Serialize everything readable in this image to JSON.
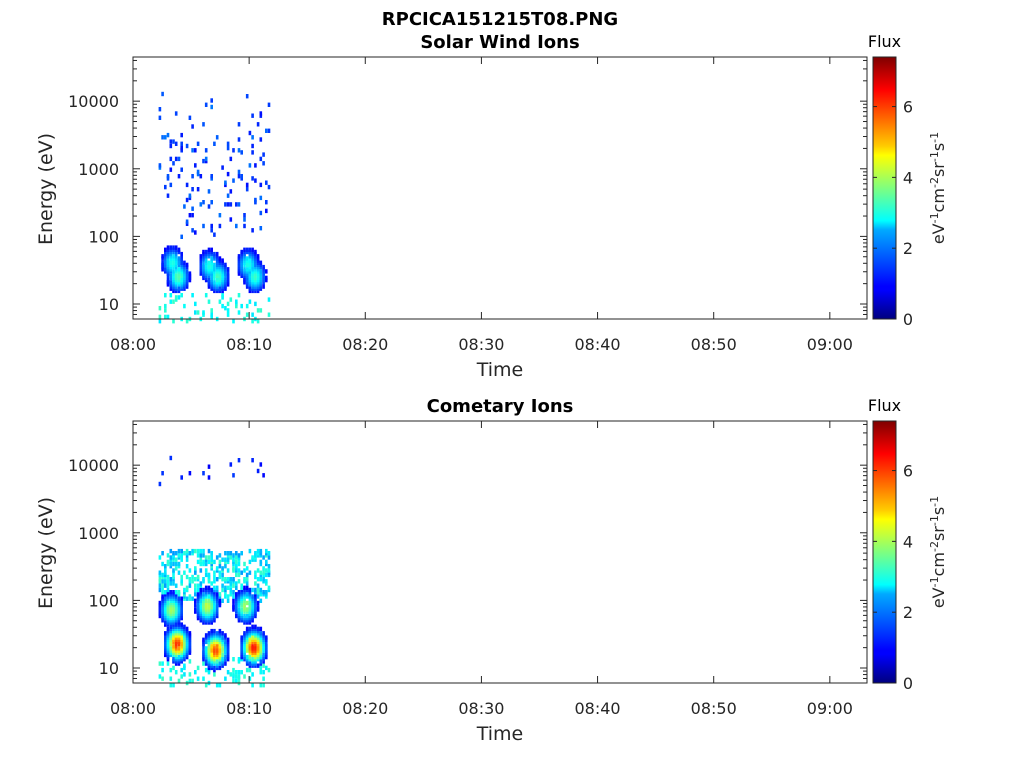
{
  "figure_title": "RPCICA151215T08.PNG",
  "chart_data": [
    {
      "type": "heatmap",
      "title": "Solar Wind Ions",
      "xlabel": "Time",
      "ylabel": "Energy (eV)",
      "x_ticks": [
        "08:00",
        "08:10",
        "08:20",
        "08:30",
        "08:40",
        "08:50",
        "09:00"
      ],
      "y_ticks": [
        "10",
        "100",
        "1000",
        "10000"
      ],
      "y_scale": "log",
      "ylim": [
        6,
        45000
      ],
      "colorbar": {
        "title": "Flux",
        "label": "eV-1cm-2sr-1s-1",
        "ticks": [
          "0",
          "2",
          "4",
          "6"
        ],
        "range": [
          0,
          7.4
        ],
        "colormap": "jet"
      },
      "data_extent": {
        "time_start": "08:02",
        "time_end": "08:11"
      },
      "blobs": [
        {
          "t": 3.8,
          "e": 28,
          "flux": 3.4
        },
        {
          "t": 7.2,
          "e": 28,
          "flux": 3.3
        },
        {
          "t": 10.4,
          "e": 28,
          "flux": 3.2
        },
        {
          "t": 3.3,
          "e": 45,
          "flux": 3.0
        },
        {
          "t": 6.5,
          "e": 40,
          "flux": 3.0
        },
        {
          "t": 9.8,
          "e": 42,
          "flux": 3.0
        }
      ]
    },
    {
      "type": "heatmap",
      "title": "Cometary Ions",
      "xlabel": "Time",
      "ylabel": "Energy (eV)",
      "x_ticks": [
        "08:00",
        "08:10",
        "08:20",
        "08:30",
        "08:40",
        "08:50",
        "09:00"
      ],
      "y_ticks": [
        "10",
        "100",
        "1000",
        "10000"
      ],
      "y_scale": "log",
      "ylim": [
        6,
        45000
      ],
      "colorbar": {
        "title": "Flux",
        "label": "eV-1cm-2sr-1s-1",
        "ticks": [
          "0",
          "2",
          "4",
          "6"
        ],
        "range": [
          0,
          7.4
        ],
        "colormap": "jet"
      },
      "data_extent": {
        "time_start": "08:02",
        "time_end": "08:11"
      },
      "blobs": [
        {
          "t": 3.7,
          "e": 25,
          "flux": 6.2
        },
        {
          "t": 7.0,
          "e": 20,
          "flux": 6.0
        },
        {
          "t": 10.3,
          "e": 22,
          "flux": 6.4
        },
        {
          "t": 3.2,
          "e": 80,
          "flux": 4.0
        },
        {
          "t": 6.3,
          "e": 90,
          "flux": 4.2
        },
        {
          "t": 9.6,
          "e": 90,
          "flux": 4.0
        }
      ]
    }
  ]
}
